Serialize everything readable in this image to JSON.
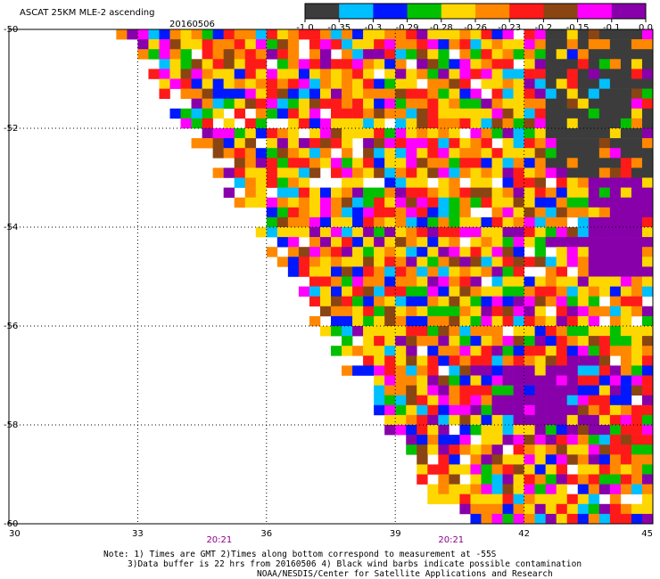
{
  "header": {
    "title": "ASCAT 25KM MLE-2 ascending",
    "date": "20160506"
  },
  "colorbar": {
    "colors": [
      "#3c3c3c",
      "#00bfff",
      "#0018ff",
      "#00c000",
      "#ffd700",
      "#ff8800",
      "#ff1a1a",
      "#8b4513",
      "#ff00ff",
      "#8800aa"
    ],
    "labels": [
      "-1.0",
      "-0.35",
      "-0.3",
      "-0.29",
      "-0.28",
      "-0.26",
      "-0.23",
      "-0.2",
      "-0.15",
      "-0.1",
      "0.0"
    ]
  },
  "chart_data": {
    "type": "heatmap",
    "title": "ASCAT 25KM MLE-2 ascending",
    "subtitle": "20160506",
    "x_range": [
      30,
      45
    ],
    "y_range": [
      -60,
      -50
    ],
    "x_ticks": [
      "30",
      "33",
      "36",
      "39",
      "42",
      "45"
    ],
    "y_ticks": [
      "-50",
      "-52",
      "-54",
      "-56",
      "-58",
      "-60"
    ],
    "time_labels": [
      {
        "text": "20:21",
        "lon": 34.9
      },
      {
        "text": "20:21",
        "lon": 40.3
      }
    ],
    "dominant_regions": [
      {
        "description_value": "-1.0 (dark gray)",
        "lon": [
          42.5,
          45
        ],
        "lat": [
          -53,
          -50
        ]
      },
      {
        "description_value": "0.0 (purple)",
        "lon": [
          43.5,
          45
        ],
        "lat": [
          -55,
          -53
        ]
      },
      {
        "description_value": "0.0 (purple)",
        "lon": [
          41.5,
          43
        ],
        "lat": [
          -58,
          -56.8
        ]
      }
    ],
    "grid": true
  },
  "notes": {
    "line1": "Note: 1) Times are GMT 2)Times along bottom correspond to measurement at -55S",
    "line2": "3)Data buffer is 22 hrs from 20160506 4) Black wind barbs indicate possible contamination",
    "line3": "NOAA/NESDIS/Center for Satellite Applications and Research"
  }
}
